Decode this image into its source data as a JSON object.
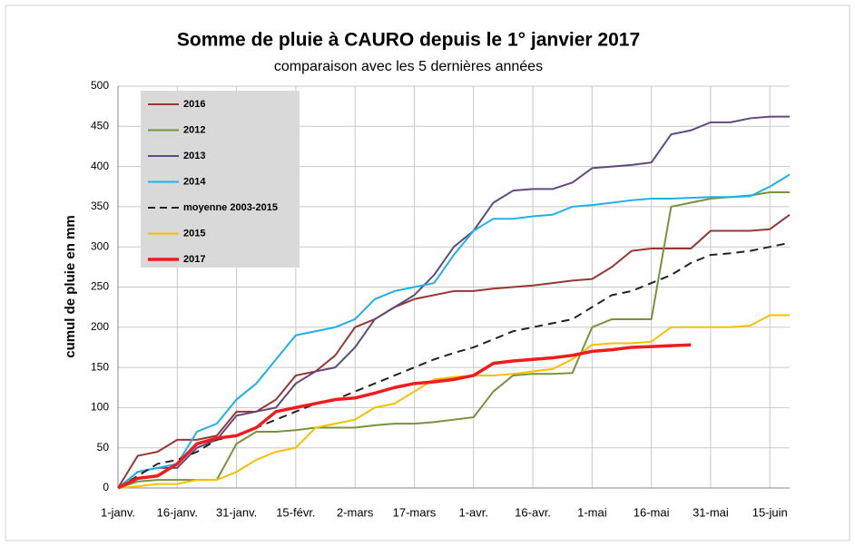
{
  "chart_data": {
    "type": "line",
    "title": "Somme de pluie à CAURO depuis le 1° janvier 2017",
    "subtitle": "comparaison avec les 5 dernières années",
    "y_label": "cumul de pluie en mm",
    "grid": true,
    "legend": "upper left",
    "x": [
      0,
      5,
      10,
      15,
      20,
      25,
      30,
      35,
      40,
      45,
      50,
      55,
      60,
      65,
      70,
      75,
      80,
      85,
      90,
      95,
      100,
      105,
      110,
      115,
      120,
      125,
      130,
      135,
      140,
      145,
      150,
      155,
      160,
      165,
      170
    ],
    "xlim": [
      0,
      170
    ],
    "xticks": [
      {
        "value": 0,
        "label": "1-janv."
      },
      {
        "value": 15,
        "label": "16-janv."
      },
      {
        "value": 30,
        "label": "31-janv."
      },
      {
        "value": 45,
        "label": "15-févr."
      },
      {
        "value": 60,
        "label": "2-mars"
      },
      {
        "value": 75,
        "label": "17-mars"
      },
      {
        "value": 90,
        "label": "1-avr."
      },
      {
        "value": 105,
        "label": "16-avr."
      },
      {
        "value": 120,
        "label": "1-mai"
      },
      {
        "value": 135,
        "label": "16-mai"
      },
      {
        "value": 150,
        "label": "31-mai"
      },
      {
        "value": 165,
        "label": "15-juin"
      }
    ],
    "ylim": [
      0,
      500
    ],
    "yticks": [
      0,
      50,
      100,
      150,
      200,
      250,
      300,
      350,
      400,
      450,
      500
    ],
    "series": [
      {
        "name": "2016",
        "color": "#953735",
        "values": [
          0,
          40,
          45,
          60,
          60,
          65,
          95,
          95,
          110,
          140,
          145,
          165,
          200,
          210,
          225,
          235,
          240,
          245,
          245,
          248,
          250,
          252,
          255,
          258,
          260,
          275,
          295,
          298,
          298,
          298,
          320,
          320,
          320,
          322,
          340
        ]
      },
      {
        "name": "2012",
        "color": "#77933c",
        "values": [
          0,
          8,
          10,
          10,
          10,
          10,
          55,
          70,
          70,
          72,
          75,
          75,
          75,
          78,
          80,
          80,
          82,
          85,
          88,
          120,
          140,
          142,
          142,
          143,
          200,
          210,
          210,
          210,
          350,
          355,
          360,
          362,
          364,
          368,
          368
        ]
      },
      {
        "name": "2013",
        "color": "#604a7b",
        "values": [
          0,
          20,
          25,
          25,
          50,
          60,
          90,
          95,
          100,
          130,
          145,
          150,
          175,
          210,
          225,
          240,
          265,
          300,
          320,
          355,
          370,
          372,
          372,
          380,
          398,
          400,
          402,
          405,
          440,
          445,
          455,
          455,
          460,
          462,
          462
        ]
      },
      {
        "name": "2014",
        "color": "#1fb0e6",
        "values": [
          0,
          20,
          25,
          30,
          70,
          80,
          110,
          130,
          160,
          190,
          195,
          200,
          210,
          235,
          245,
          250,
          255,
          290,
          320,
          335,
          335,
          338,
          340,
          350,
          352,
          355,
          358,
          360,
          360,
          361,
          362,
          362,
          363,
          375,
          390
        ]
      },
      {
        "name": "moyenne 2003-2015",
        "color": "#222222",
        "dashed": true,
        "values": [
          0,
          15,
          30,
          35,
          45,
          60,
          65,
          75,
          85,
          95,
          105,
          110,
          120,
          130,
          140,
          150,
          160,
          168,
          175,
          185,
          195,
          200,
          205,
          210,
          225,
          240,
          245,
          255,
          265,
          280,
          290,
          292,
          295,
          300,
          305
        ]
      },
      {
        "name": "2015",
        "color": "#f5c000",
        "values": [
          0,
          2,
          5,
          5,
          10,
          10,
          20,
          35,
          45,
          50,
          75,
          80,
          85,
          100,
          105,
          120,
          135,
          138,
          140,
          140,
          142,
          145,
          148,
          160,
          178,
          180,
          180,
          182,
          200,
          200,
          200,
          200,
          202,
          215,
          215
        ]
      },
      {
        "name": "2017",
        "color": "#ee1c1c",
        "width": 3.5,
        "values": [
          0,
          12,
          15,
          30,
          55,
          62,
          65,
          75,
          95,
          100,
          105,
          110,
          112,
          118,
          125,
          130,
          132,
          135,
          140,
          155,
          158,
          160,
          162,
          165,
          170,
          172,
          175,
          176,
          177,
          178,
          null,
          null,
          null,
          null,
          null
        ]
      }
    ]
  }
}
